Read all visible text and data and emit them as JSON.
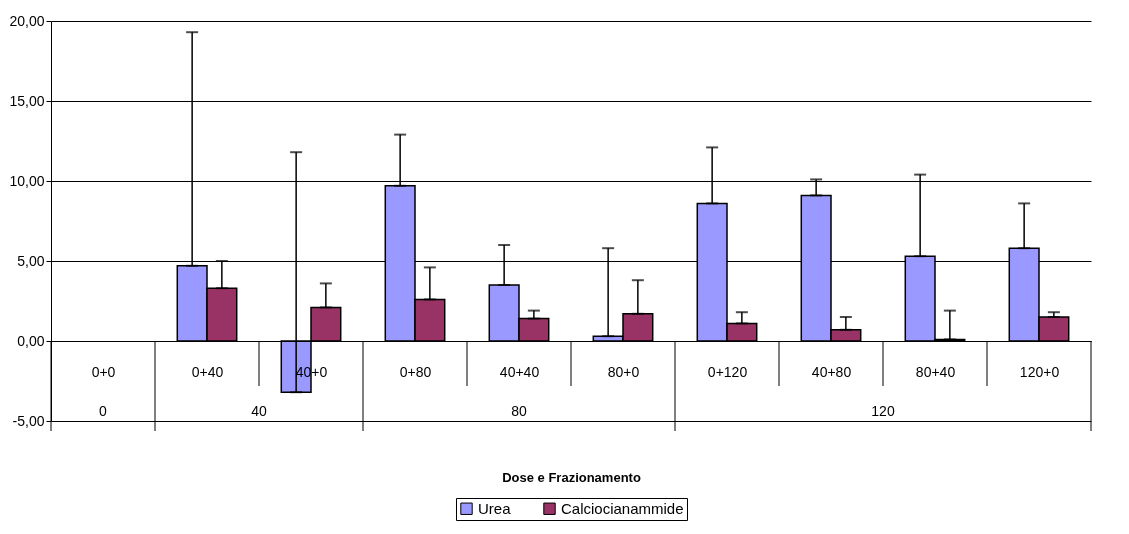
{
  "chart_data": {
    "type": "bar",
    "xlabel": "Dose e Frazionamento",
    "categories": [
      "0+0",
      "0+40",
      "40+0",
      "0+80",
      "40+40",
      "80+0",
      "0+120",
      "40+80",
      "80+40",
      "120+0"
    ],
    "series": [
      {
        "name": "Urea",
        "color": "#9999ff",
        "values": [
          null,
          4.7,
          -3.2,
          9.7,
          3.5,
          0.3,
          8.6,
          9.1,
          5.3,
          5.8
        ],
        "errors": [
          null,
          [
            4.7,
            19.3
          ],
          [
            -3.2,
            11.8
          ],
          [
            9.7,
            12.9
          ],
          [
            3.5,
            6.0
          ],
          [
            0.3,
            5.8
          ],
          [
            8.6,
            12.1
          ],
          [
            9.1,
            10.1
          ],
          [
            5.3,
            10.4
          ],
          [
            5.8,
            8.6
          ]
        ]
      },
      {
        "name": "Calciocianammide",
        "color": "#993366",
        "values": [
          null,
          3.3,
          2.1,
          2.6,
          1.4,
          1.7,
          1.1,
          0.7,
          0.1,
          1.5
        ],
        "errors": [
          null,
          [
            3.3,
            5.0
          ],
          [
            2.1,
            3.6
          ],
          [
            2.6,
            4.6
          ],
          [
            1.4,
            1.9
          ],
          [
            1.7,
            3.8
          ],
          [
            1.1,
            1.8
          ],
          [
            0.7,
            1.5
          ],
          [
            0.1,
            1.9
          ],
          [
            1.5,
            1.8
          ]
        ]
      }
    ],
    "annotations": [
      "0",
      "40",
      "80",
      "120"
    ],
    "ylim": [
      -5,
      20
    ],
    "yticks": [
      {
        "value": -5,
        "label": "-5,00"
      },
      {
        "value": 0,
        "label": "0,00"
      },
      {
        "value": 5,
        "label": "5,00"
      },
      {
        "value": 10,
        "label": "10,00"
      },
      {
        "value": 15,
        "label": "15,00"
      },
      {
        "value": 20,
        "label": "20,00"
      }
    ],
    "grid": "y",
    "legend": "bottom"
  }
}
